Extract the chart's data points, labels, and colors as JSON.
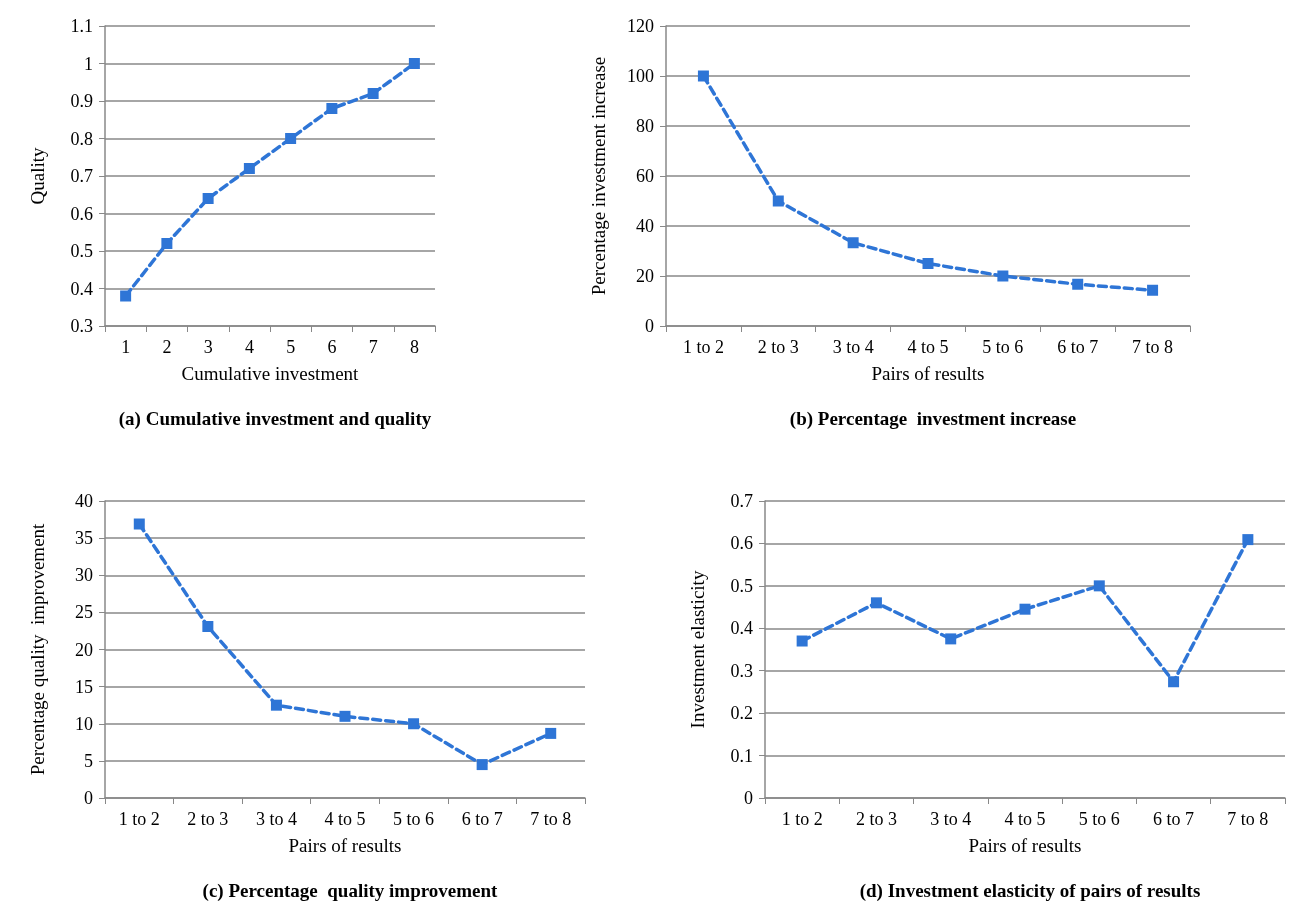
{
  "chart_data": [
    {
      "type": "line",
      "title": "(a) Cumulative investment and quality",
      "xlabel": "Cumulative investment",
      "ylabel": "Quality",
      "categories": [
        "1",
        "2",
        "3",
        "4",
        "5",
        "6",
        "7",
        "8"
      ],
      "series": [
        {
          "color": "#2e75d6",
          "values": [
            0.38,
            0.52,
            0.64,
            0.72,
            0.8,
            0.88,
            0.92,
            1.0
          ]
        }
      ],
      "ylim": [
        0.3,
        1.1
      ],
      "yticks": [
        0.3,
        0.4,
        0.5,
        0.6,
        0.7,
        0.8,
        0.9,
        1,
        1.1
      ],
      "grid": "y",
      "marker": "square",
      "line_style": "dashed"
    },
    {
      "type": "line",
      "title": "(b) Percentage  investment increase",
      "xlabel": "Pairs of results",
      "ylabel": "Percentage investment increase",
      "categories": [
        "1 to 2",
        "2 to 3",
        "3 to 4",
        "4 to 5",
        "5 to 6",
        "6 to 7",
        "7 to 8"
      ],
      "series": [
        {
          "color": "#2e75d6",
          "values": [
            100,
            50,
            33.3,
            25,
            20,
            16.7,
            14.3
          ]
        }
      ],
      "ylim": [
        0,
        120
      ],
      "yticks": [
        0,
        20,
        40,
        60,
        80,
        100,
        120
      ],
      "grid": "y",
      "marker": "square",
      "line_style": "dashed"
    },
    {
      "type": "line",
      "title": "(c) Percentage  quality improvement",
      "xlabel": "Pairs of results",
      "ylabel": "Percentage quality  improvement",
      "categories": [
        "1 to 2",
        "2 to 3",
        "3 to 4",
        "4 to 5",
        "5 to 6",
        "6 to 7",
        "7 to 8"
      ],
      "series": [
        {
          "color": "#2e75d6",
          "values": [
            36.9,
            23.1,
            12.5,
            11.0,
            10.0,
            4.5,
            8.7
          ]
        }
      ],
      "ylim": [
        0,
        40
      ],
      "yticks": [
        0,
        5,
        10,
        15,
        20,
        25,
        30,
        35,
        40
      ],
      "grid": "y",
      "marker": "square",
      "line_style": "dashed"
    },
    {
      "type": "line",
      "title": "(d) Investment elasticity of pairs of results",
      "xlabel": "Pairs of results",
      "ylabel": "Investment elasticity",
      "categories": [
        "1 to 2",
        "2 to 3",
        "3 to 4",
        "4 to 5",
        "5 to 6",
        "6 to 7",
        "7 to 8"
      ],
      "series": [
        {
          "color": "#2e75d6",
          "values": [
            0.37,
            0.46,
            0.375,
            0.445,
            0.5,
            0.274,
            0.609
          ]
        }
      ],
      "ylim": [
        0,
        0.7
      ],
      "yticks": [
        0,
        0.1,
        0.2,
        0.3,
        0.4,
        0.5,
        0.6,
        0.7
      ],
      "grid": "y",
      "marker": "square",
      "line_style": "dashed"
    }
  ]
}
